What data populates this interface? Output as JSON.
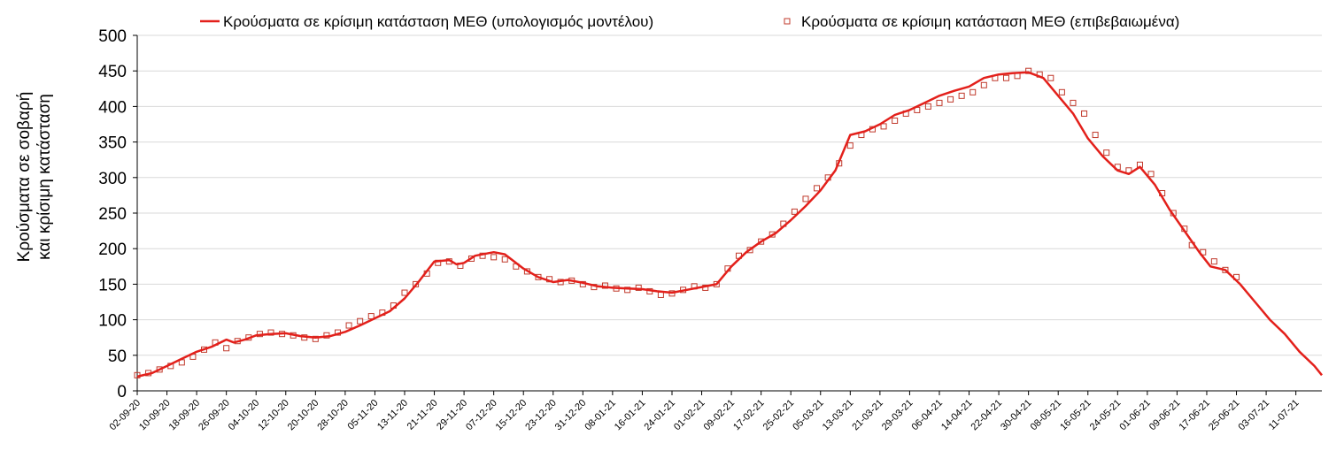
{
  "chart_data": {
    "type": "line",
    "title": "",
    "xlabel": "",
    "ylabel_lines": [
      "Κρούσματα σε σοβαρή",
      "και κρίσιμη κατάσταση"
    ],
    "ylim": [
      0,
      500
    ],
    "yticks": [
      0,
      50,
      100,
      150,
      200,
      250,
      300,
      350,
      400,
      450,
      500
    ],
    "xlim": [
      "2020-09-02",
      "2021-07-18"
    ],
    "xtick_labels": [
      "02-09-20",
      "10-09-20",
      "18-09-20",
      "26-09-20",
      "04-10-20",
      "12-10-20",
      "20-10-20",
      "28-10-20",
      "05-11-20",
      "13-11-20",
      "21-11-20",
      "29-11-20",
      "07-12-20",
      "15-12-20",
      "23-12-20",
      "31-12-20",
      "08-01-21",
      "16-01-21",
      "24-01-21",
      "01-02-21",
      "09-02-21",
      "17-02-21",
      "25-02-21",
      "05-03-21",
      "13-03-21",
      "21-03-21",
      "29-03-21",
      "06-04-21",
      "14-04-21",
      "22-04-21",
      "30-04-21",
      "08-05-21",
      "16-05-21",
      "24-05-21",
      "01-06-21",
      "09-06-21",
      "17-06-21",
      "25-06-21",
      "03-07-21",
      "11-07-21"
    ],
    "grid": "horizontal",
    "legend_position": "top-center",
    "colors": {
      "model": "#e3201b",
      "confirmed": "#c0392b"
    },
    "series": [
      {
        "name": "Κρούσματα σε κρίσιμη κατάσταση ΜΕΘ (υπολογισμός μοντέλου)",
        "style": "line",
        "x": [
          "2020-09-02",
          "2020-09-06",
          "2020-09-10",
          "2020-09-14",
          "2020-09-18",
          "2020-09-22",
          "2020-09-26",
          "2020-09-28",
          "2020-10-01",
          "2020-10-04",
          "2020-10-08",
          "2020-10-12",
          "2020-10-16",
          "2020-10-20",
          "2020-10-24",
          "2020-10-28",
          "2020-11-01",
          "2020-11-05",
          "2020-11-09",
          "2020-11-13",
          "2020-11-17",
          "2020-11-21",
          "2020-11-25",
          "2020-11-27",
          "2020-11-29",
          "2020-12-02",
          "2020-12-07",
          "2020-12-10",
          "2020-12-15",
          "2020-12-19",
          "2020-12-23",
          "2020-12-27",
          "2020-12-31",
          "2021-01-04",
          "2021-01-08",
          "2021-01-12",
          "2021-01-16",
          "2021-01-20",
          "2021-01-24",
          "2021-01-28",
          "2021-02-01",
          "2021-02-05",
          "2021-02-09",
          "2021-02-13",
          "2021-02-17",
          "2021-02-21",
          "2021-02-25",
          "2021-03-01",
          "2021-03-05",
          "2021-03-09",
          "2021-03-13",
          "2021-03-17",
          "2021-03-21",
          "2021-03-25",
          "2021-03-29",
          "2021-04-02",
          "2021-04-06",
          "2021-04-10",
          "2021-04-14",
          "2021-04-18",
          "2021-04-22",
          "2021-04-26",
          "2021-04-30",
          "2021-05-04",
          "2021-05-08",
          "2021-05-12",
          "2021-05-16",
          "2021-05-20",
          "2021-05-24",
          "2021-05-27",
          "2021-05-30",
          "2021-06-03",
          "2021-06-07",
          "2021-06-11",
          "2021-06-15",
          "2021-06-18",
          "2021-06-22",
          "2021-06-26",
          "2021-06-30",
          "2021-07-04",
          "2021-07-08",
          "2021-07-12",
          "2021-07-16",
          "2021-07-18"
        ],
        "y": [
          20,
          25,
          35,
          45,
          55,
          62,
          72,
          68,
          72,
          78,
          80,
          81,
          77,
          75,
          77,
          83,
          92,
          102,
          112,
          130,
          155,
          182,
          184,
          178,
          180,
          190,
          195,
          192,
          172,
          160,
          153,
          156,
          152,
          147,
          145,
          144,
          143,
          140,
          138,
          142,
          146,
          150,
          175,
          195,
          210,
          222,
          240,
          260,
          282,
          310,
          360,
          365,
          375,
          388,
          395,
          405,
          415,
          422,
          428,
          440,
          445,
          447,
          448,
          440,
          415,
          390,
          355,
          330,
          310,
          305,
          315,
          290,
          255,
          225,
          195,
          175,
          170,
          150,
          125,
          100,
          80,
          55,
          35,
          22
        ]
      },
      {
        "name": "Κρούσματα σε κρίσιμη κατάσταση ΜΕΘ (επιβεβαιωμένα)",
        "style": "markers",
        "x": [
          "2020-09-02",
          "2020-09-05",
          "2020-09-08",
          "2020-09-11",
          "2020-09-14",
          "2020-09-17",
          "2020-09-20",
          "2020-09-23",
          "2020-09-26",
          "2020-09-29",
          "2020-10-02",
          "2020-10-05",
          "2020-10-08",
          "2020-10-11",
          "2020-10-14",
          "2020-10-17",
          "2020-10-20",
          "2020-10-23",
          "2020-10-26",
          "2020-10-29",
          "2020-11-01",
          "2020-11-04",
          "2020-11-07",
          "2020-11-10",
          "2020-11-13",
          "2020-11-16",
          "2020-11-19",
          "2020-11-22",
          "2020-11-25",
          "2020-11-28",
          "2020-12-01",
          "2020-12-04",
          "2020-12-07",
          "2020-12-10",
          "2020-12-13",
          "2020-12-16",
          "2020-12-19",
          "2020-12-22",
          "2020-12-25",
          "2020-12-28",
          "2020-12-31",
          "2021-01-03",
          "2021-01-06",
          "2021-01-09",
          "2021-01-12",
          "2021-01-15",
          "2021-01-18",
          "2021-01-21",
          "2021-01-24",
          "2021-01-27",
          "2021-01-30",
          "2021-02-02",
          "2021-02-05",
          "2021-02-08",
          "2021-02-11",
          "2021-02-14",
          "2021-02-17",
          "2021-02-20",
          "2021-02-23",
          "2021-02-26",
          "2021-03-01",
          "2021-03-04",
          "2021-03-07",
          "2021-03-10",
          "2021-03-13",
          "2021-03-16",
          "2021-03-19",
          "2021-03-22",
          "2021-03-25",
          "2021-03-28",
          "2021-03-31",
          "2021-04-03",
          "2021-04-06",
          "2021-04-09",
          "2021-04-12",
          "2021-04-15",
          "2021-04-18",
          "2021-04-21",
          "2021-04-24",
          "2021-04-27",
          "2021-04-30",
          "2021-05-03",
          "2021-05-06",
          "2021-05-09",
          "2021-05-12",
          "2021-05-15",
          "2021-05-18",
          "2021-05-21",
          "2021-05-24",
          "2021-05-27",
          "2021-05-30",
          "2021-06-02",
          "2021-06-05",
          "2021-06-08",
          "2021-06-11",
          "2021-06-13",
          "2021-06-16",
          "2021-06-19",
          "2021-06-22",
          "2021-06-25"
        ],
        "y": [
          22,
          25,
          30,
          35,
          40,
          48,
          58,
          68,
          60,
          70,
          75,
          80,
          82,
          80,
          78,
          75,
          73,
          78,
          82,
          92,
          98,
          105,
          110,
          120,
          138,
          150,
          165,
          180,
          182,
          176,
          186,
          190,
          188,
          185,
          175,
          168,
          160,
          157,
          153,
          155,
          150,
          146,
          148,
          144,
          142,
          145,
          140,
          135,
          137,
          142,
          147,
          145,
          150,
          172,
          190,
          198,
          210,
          220,
          235,
          252,
          270,
          285,
          300,
          320,
          345,
          360,
          368,
          372,
          380,
          390,
          395,
          400,
          405,
          410,
          415,
          420,
          430,
          440,
          440,
          443,
          450,
          445,
          440,
          420,
          405,
          390,
          360,
          335,
          315,
          310,
          318,
          305,
          278,
          250,
          228,
          205,
          195,
          182,
          170,
          160
        ]
      }
    ]
  }
}
